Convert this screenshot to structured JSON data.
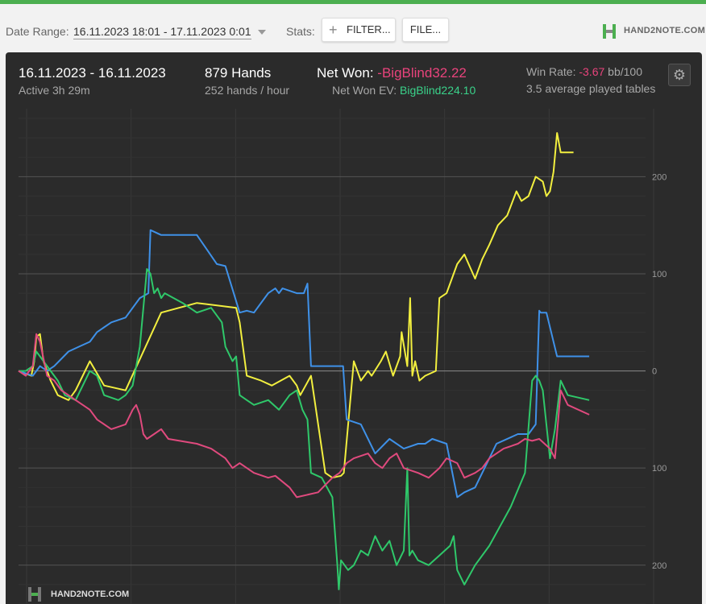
{
  "toolbar": {
    "date_range_label": "Date Range:",
    "date_range_value": "16.11.2023 18:01 - 17.11.2023 0:01",
    "stats_label": "Stats:",
    "filter_button": "FILTER...",
    "file_button": "FILE...",
    "logo_text": "HAND2NOTE.COM"
  },
  "summary": {
    "dates": "16.11.2023 - 16.11.2023",
    "active": "Active 3h 29m",
    "hands": "879 Hands",
    "hands_per_hour": "252 hands / hour",
    "net_won_label": "Net Won:",
    "net_won_value": "-BigBlind32.22",
    "net_won_ev_label": "Net Won  EV:",
    "net_won_ev_value": "BigBlind224.10",
    "win_rate_label": "Win Rate:",
    "win_rate_value": "-3.67",
    "win_rate_unit": "bb/100",
    "avg_tables": "3.5 average played tables"
  },
  "watermark": "HAND2NOTE.COM",
  "colors": {
    "yellow": "#f2ef3f",
    "blue": "#3f91e8",
    "green": "#2fc86a",
    "red": "#e04a7e",
    "neg": "#e9437c",
    "pos": "#3ad28a"
  },
  "chart_data": {
    "type": "line",
    "x_range": [
      0,
      879
    ],
    "ylim": [
      -240,
      270
    ],
    "yticks": [
      200,
      100,
      0,
      -100,
      -200
    ],
    "ytick_labels": [
      "200",
      "100",
      "0",
      "100",
      "200"
    ],
    "grid": true,
    "series": [
      {
        "color_key": "yellow",
        "x": [
          0,
          18,
          22,
          25,
          30,
          35,
          45,
          55,
          70,
          80,
          100,
          120,
          150,
          200,
          250,
          305,
          310,
          320,
          340,
          355,
          380,
          390,
          395,
          410,
          412,
          430,
          440,
          452,
          456,
          470,
          480,
          490,
          495,
          508,
          515,
          525,
          535,
          537,
          545,
          549,
          552,
          556,
          562,
          570,
          585,
          590,
          600,
          615,
          625,
          640,
          650,
          660,
          672,
          685,
          698,
          705,
          715,
          725,
          735,
          740,
          745,
          750,
          755,
          760,
          770,
          778
        ],
        "y": [
          0,
          -5,
          10,
          35,
          38,
          10,
          -10,
          -25,
          -30,
          -20,
          10,
          -15,
          -20,
          60,
          70,
          65,
          50,
          -5,
          -10,
          -15,
          -5,
          -15,
          -25,
          -5,
          -15,
          -105,
          -110,
          -108,
          -105,
          10,
          -10,
          0,
          -5,
          10,
          20,
          -5,
          15,
          40,
          5,
          75,
          -5,
          10,
          -10,
          -5,
          0,
          75,
          80,
          110,
          120,
          95,
          115,
          130,
          150,
          160,
          185,
          175,
          180,
          200,
          195,
          180,
          185,
          205,
          245,
          225,
          225,
          225
        ]
      },
      {
        "color_key": "blue",
        "x": [
          0,
          20,
          30,
          40,
          50,
          70,
          85,
          100,
          110,
          130,
          150,
          170,
          182,
          185,
          200,
          250,
          278,
          290,
          310,
          320,
          330,
          350,
          360,
          365,
          370,
          390,
          400,
          405,
          410,
          455,
          460,
          480,
          500,
          520,
          540,
          560,
          570,
          580,
          600,
          615,
          625,
          640,
          660,
          670,
          700,
          715,
          725,
          730,
          732,
          740,
          755,
          760,
          800
        ],
        "y": [
          0,
          -5,
          5,
          0,
          5,
          20,
          25,
          30,
          40,
          50,
          55,
          75,
          80,
          145,
          140,
          140,
          110,
          108,
          60,
          62,
          60,
          80,
          85,
          80,
          85,
          80,
          80,
          90,
          5,
          5,
          -50,
          -55,
          -85,
          -70,
          -80,
          -75,
          -75,
          -70,
          -75,
          -130,
          -125,
          -120,
          -90,
          -75,
          -65,
          -65,
          -55,
          62,
          60,
          60,
          15,
          15,
          15
        ]
      },
      {
        "color_key": "green",
        "x": [
          0,
          10,
          20,
          25,
          30,
          40,
          55,
          65,
          80,
          90,
          100,
          110,
          120,
          140,
          150,
          160,
          170,
          180,
          185,
          190,
          195,
          200,
          205,
          230,
          250,
          270,
          285,
          290,
          300,
          305,
          310,
          320,
          330,
          350,
          365,
          380,
          390,
          398,
          405,
          410,
          425,
          440,
          447,
          449,
          452,
          462,
          470,
          480,
          490,
          500,
          510,
          520,
          530,
          540,
          545,
          548,
          552,
          560,
          575,
          590,
          605,
          610,
          615,
          625,
          640,
          660,
          690,
          710,
          720,
          725,
          730,
          735,
          745,
          752,
          760,
          770,
          800
        ],
        "y": [
          0,
          0,
          5,
          20,
          15,
          5,
          -10,
          -25,
          -30,
          -15,
          0,
          -5,
          -25,
          -30,
          -25,
          -15,
          25,
          105,
          100,
          80,
          85,
          75,
          80,
          70,
          60,
          65,
          50,
          25,
          10,
          15,
          -25,
          -30,
          -35,
          -30,
          -40,
          -25,
          -20,
          -40,
          -50,
          -105,
          -110,
          -130,
          -200,
          -225,
          -195,
          -205,
          -200,
          -185,
          -190,
          -170,
          -185,
          -175,
          -200,
          -185,
          -100,
          -190,
          -185,
          -195,
          -200,
          -190,
          -180,
          -170,
          -205,
          -220,
          -200,
          -180,
          -140,
          -105,
          -10,
          -5,
          -10,
          -20,
          -90,
          -60,
          -10,
          -25,
          -30
        ]
      },
      {
        "color_key": "red",
        "x": [
          0,
          10,
          20,
          25,
          30,
          40,
          50,
          60,
          70,
          80,
          90,
          100,
          110,
          130,
          150,
          160,
          165,
          170,
          175,
          180,
          190,
          200,
          210,
          250,
          270,
          290,
          300,
          310,
          330,
          350,
          360,
          380,
          390,
          420,
          440,
          450,
          460,
          470,
          490,
          500,
          510,
          520,
          530,
          540,
          560,
          575,
          590,
          600,
          615,
          625,
          640,
          650,
          660,
          680,
          700,
          710,
          720,
          730,
          745,
          752,
          760,
          770,
          800
        ],
        "y": [
          0,
          -5,
          5,
          38,
          30,
          -5,
          -10,
          -20,
          -25,
          -30,
          -35,
          -40,
          -50,
          -60,
          -55,
          -40,
          -35,
          -45,
          -65,
          -70,
          -65,
          -60,
          -70,
          -75,
          -80,
          -90,
          -100,
          -95,
          -105,
          -110,
          -108,
          -120,
          -130,
          -125,
          -110,
          -105,
          -95,
          -90,
          -85,
          -95,
          -100,
          -90,
          -85,
          -100,
          -105,
          -110,
          -100,
          -90,
          -95,
          -110,
          -105,
          -100,
          -90,
          -80,
          -75,
          -70,
          -72,
          -70,
          -80,
          -90,
          -20,
          -35,
          -45
        ]
      }
    ]
  }
}
